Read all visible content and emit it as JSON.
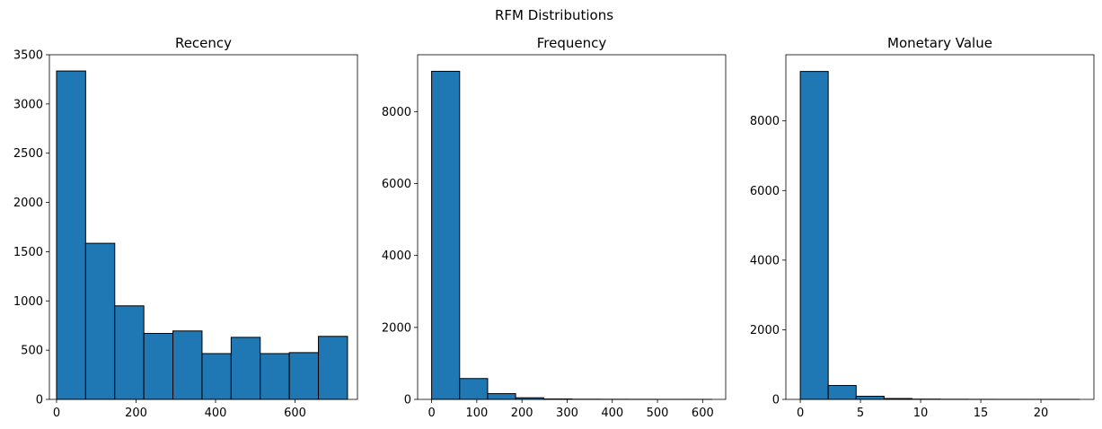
{
  "chart_data": {
    "type": "bar",
    "title": "RFM Distributions",
    "bar_color": "#1f77b4",
    "edge_color": "#000000",
    "grid": false,
    "panels": [
      {
        "title": "Recency",
        "xlim": [
          -18,
          757
        ],
        "ylim": [
          0,
          3500
        ],
        "xticks": [
          0,
          200,
          400,
          600
        ],
        "yticks": [
          0,
          500,
          1000,
          1500,
          2000,
          2500,
          3000,
          3500
        ],
        "bin_edges": [
          0,
          73.2,
          146.4,
          219.6,
          292.8,
          366,
          439.2,
          512.4,
          585.6,
          658.8,
          732
        ],
        "values": [
          3335,
          1585,
          950,
          670,
          695,
          465,
          630,
          465,
          475,
          640
        ]
      },
      {
        "title": "Frequency",
        "xlim": [
          -31,
          651
        ],
        "ylim": [
          0,
          9580
        ],
        "xticks": [
          0,
          100,
          200,
          300,
          400,
          500,
          600
        ],
        "yticks": [
          0,
          2000,
          4000,
          6000,
          8000
        ],
        "bin_edges": [
          0,
          62,
          124,
          186,
          248,
          310,
          372,
          434,
          496,
          558,
          620
        ],
        "values": [
          9120,
          580,
          160,
          45,
          12,
          5,
          3,
          2,
          1,
          1
        ]
      },
      {
        "title": "Monetary Value",
        "xlim": [
          -1.2,
          24.4
        ],
        "ylim": [
          0,
          9900
        ],
        "xticks": [
          0,
          5,
          10,
          15,
          20
        ],
        "yticks": [
          0,
          2000,
          4000,
          6000,
          8000
        ],
        "bin_edges": [
          0,
          2.32,
          4.64,
          6.96,
          9.28,
          11.6,
          13.92,
          16.24,
          18.56,
          20.88,
          23.2
        ],
        "values": [
          9420,
          400,
          90,
          25,
          8,
          4,
          2,
          1,
          1,
          1
        ]
      }
    ]
  }
}
